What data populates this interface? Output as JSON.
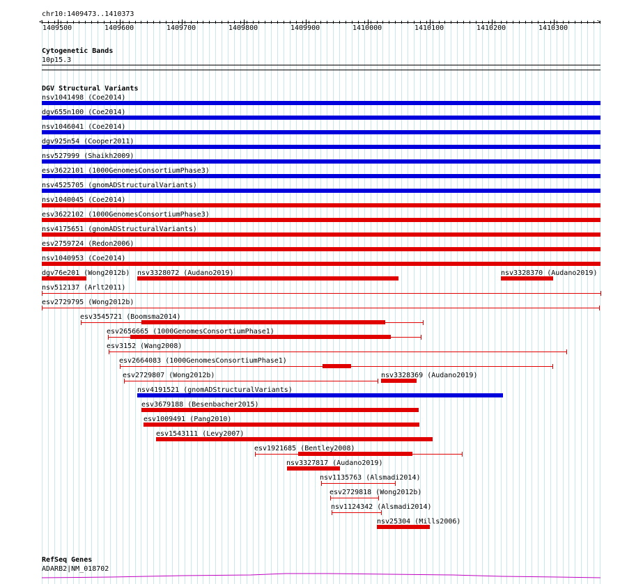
{
  "coordinate_readout": "chr10:1409473..1410373",
  "ruler": {
    "ticks": [
      "1409500",
      "1409600",
      "1409700",
      "1409800",
      "1409900",
      "1410000",
      "1410100",
      "1410200",
      "1410300"
    ]
  },
  "tracks": {
    "cytoband": {
      "title": "Cytogenetic Bands",
      "band": "10p15.3"
    },
    "dgv": {
      "title": "DGV Structural Variants"
    },
    "refseq": {
      "title": "RefSeq Genes",
      "gene": "ADARB2|NM_018702"
    }
  },
  "colors": {
    "loss": "#e00000",
    "gain": "#0000dd",
    "grid": "#c8e8ec",
    "gene": "#c000c0"
  },
  "variants": [
    {
      "label": "nsv1041498 (Coe2014)",
      "type": "gain"
    },
    {
      "label": "dgv655n100 (Coe2014)",
      "type": "gain"
    },
    {
      "label": "nsv1046041 (Coe2014)",
      "type": "gain"
    },
    {
      "label": "dgv925n54 (Cooper2011)",
      "type": "gain"
    },
    {
      "label": "nsv527999 (Shaikh2009)",
      "type": "gain"
    },
    {
      "label": "esv3622101 (1000GenomesConsortiumPhase3)",
      "type": "gain"
    },
    {
      "label": "nsv4525705 (gnomADStructuralVariants)",
      "type": "gain"
    },
    {
      "label": "nsv1040045 (Coe2014)",
      "type": "loss"
    },
    {
      "label": "esv3622102 (1000GenomesConsortiumPhase3)",
      "type": "loss"
    },
    {
      "label": "nsv4175651 (gnomADStructuralVariants)",
      "type": "loss"
    },
    {
      "label": "esv2759724 (Redon2006)",
      "type": "loss"
    },
    {
      "label": "nsv1040953 (Coe2014)",
      "type": "loss"
    },
    {
      "label": "dgv76e201 (Wong2012b)",
      "type": "loss"
    },
    {
      "label": "nsv3328072 (Audano2019)",
      "type": "loss"
    },
    {
      "label": "nsv3328370 (Audano2019)",
      "type": "loss"
    },
    {
      "label": "nsv512137 (Arlt2011)",
      "type": "loss"
    },
    {
      "label": "esv2729795 (Wong2012b)",
      "type": "loss"
    },
    {
      "label": "esv3545721 (Boomsma2014)",
      "type": "loss"
    },
    {
      "label": "esv2656665 (1000GenomesConsortiumPhase1)",
      "type": "loss"
    },
    {
      "label": "esv3152 (Wang2008)",
      "type": "loss"
    },
    {
      "label": "esv2664083 (1000GenomesConsortiumPhase1)",
      "type": "loss"
    },
    {
      "label": "esv2729807 (Wong2012b)",
      "type": "loss"
    },
    {
      "label": "nsv3328369 (Audano2019)",
      "type": "loss"
    },
    {
      "label": "nsv4191521 (gnomADStructuralVariants)",
      "type": "gain"
    },
    {
      "label": "esv3679188 (Besenbacher2015)",
      "type": "loss"
    },
    {
      "label": "esv1009491 (Pang2010)",
      "type": "loss"
    },
    {
      "label": "esv1543111 (Levy2007)",
      "type": "loss"
    },
    {
      "label": "esv1921685 (Bentley2008)",
      "type": "loss"
    },
    {
      "label": "nsv3327817 (Audano2019)",
      "type": "loss"
    },
    {
      "label": "nsv1135763 (Alsmadi2014)",
      "type": "loss"
    },
    {
      "label": "esv2729818 (Wong2012b)",
      "type": "loss"
    },
    {
      "label": "nsv1124342 (Alsmadi2014)",
      "type": "loss"
    },
    {
      "label": "nsv25304 (Mills2006)",
      "type": "loss"
    }
  ]
}
